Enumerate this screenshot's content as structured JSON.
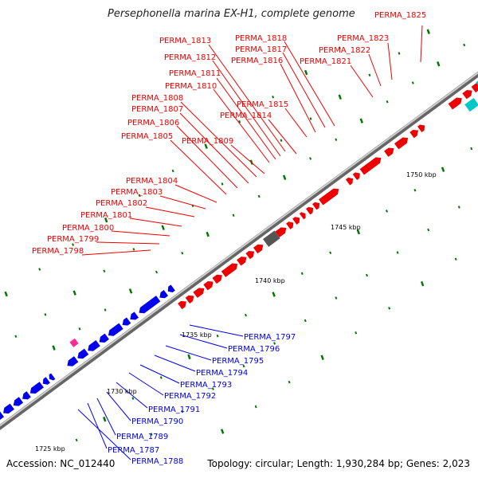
{
  "title": "Persephonella marina EX-H1, complete genome",
  "accession": "Accession: NC_012440",
  "topology": "Topology: circular; Length: 1,930,284 bp; Genes: 2,023",
  "colors": {
    "forward": "#ee0000",
    "reverse": "#0000ee",
    "gray": "#555555",
    "cyan": "#00c8c8",
    "pink": "#ff2a9a",
    "green": "#007700",
    "backbone": "#888888"
  },
  "ticks": [
    "1725 kbp",
    "1730 kbp",
    "1735 kbp",
    "1740 kbp",
    "1745 kbp",
    "1750 kbp"
  ],
  "genes_top": [
    "PERMA_1825",
    "PERMA_1823",
    "PERMA_1822",
    "PERMA_1821",
    "PERMA_1818",
    "PERMA_1817",
    "PERMA_1816",
    "PERMA_1815",
    "PERMA_1814",
    "PERMA_1813",
    "PERMA_1812",
    "PERMA_1811",
    "PERMA_1810",
    "PERMA_1809",
    "PERMA_1808",
    "PERMA_1807",
    "PERMA_1806",
    "PERMA_1805",
    "PERMA_1804",
    "PERMA_1803",
    "PERMA_1802",
    "PERMA_1801",
    "PERMA_1800",
    "PERMA_1799",
    "PERMA_1798"
  ],
  "genes_bottom": [
    "PERMA_1797",
    "PERMA_1796",
    "PERMA_1795",
    "PERMA_1794",
    "PERMA_1793",
    "PERMA_1792",
    "PERMA_1791",
    "PERMA_1790",
    "PERMA_1789",
    "PERMA_1787",
    "PERMA_1788"
  ]
}
